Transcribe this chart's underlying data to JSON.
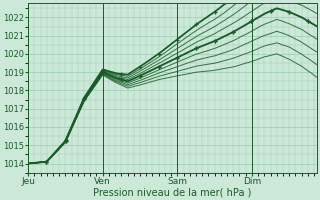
{
  "bg_color": "#cce8d8",
  "grid_color": "#99ccb0",
  "line_color_dark": "#1a5c28",
  "xlabel": "Pression niveau de la mer( hPa )",
  "xtick_labels": [
    "Jeu",
    "Ven",
    "Sam",
    "Dim"
  ],
  "xtick_positions": [
    0,
    24,
    48,
    72
  ],
  "ylim": [
    1013.5,
    1022.8
  ],
  "xlim": [
    0,
    93
  ],
  "yticks": [
    1014,
    1015,
    1016,
    1017,
    1018,
    1019,
    1020,
    1021,
    1022
  ],
  "n_lines": 9,
  "total_hours": 93
}
